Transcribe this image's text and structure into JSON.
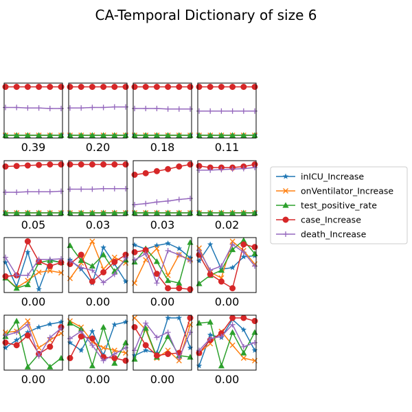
{
  "chart_data": {
    "type": "line",
    "title": "CA-Temporal Dictionary of size 6",
    "x": [
      0,
      1,
      2,
      3,
      4,
      5
    ],
    "legend": {
      "position": "center-right",
      "entries": [
        {
          "name": "inICU_Increase",
          "color": "#1f77b4",
          "marker": "star"
        },
        {
          "name": "onVentilator_Increase",
          "color": "#ff7f0e",
          "marker": "x"
        },
        {
          "name": "test_positive_rate",
          "color": "#2ca02c",
          "marker": "triangle"
        },
        {
          "name": "case_Increase",
          "color": "#d62728",
          "marker": "circle"
        },
        {
          "name": "death_Increase",
          "color": "#9467bd",
          "marker": "plus"
        }
      ]
    },
    "panels": [
      {
        "weight": "0.39",
        "ylim": [
          0,
          1
        ],
        "series": [
          [
            0.02,
            0.02,
            0.02,
            0.02,
            0.02,
            0.02
          ],
          [
            0.02,
            0.02,
            0.02,
            0.02,
            0.02,
            0.02
          ],
          [
            0.02,
            0.02,
            0.02,
            0.02,
            0.02,
            0.02
          ],
          [
            0.96,
            0.96,
            0.96,
            0.96,
            0.96,
            0.96
          ],
          [
            0.56,
            0.56,
            0.55,
            0.55,
            0.54,
            0.54
          ]
        ]
      },
      {
        "weight": "0.20",
        "ylim": [
          0,
          1
        ],
        "series": [
          [
            0.02,
            0.02,
            0.02,
            0.02,
            0.02,
            0.02
          ],
          [
            0.02,
            0.02,
            0.02,
            0.02,
            0.02,
            0.02
          ],
          [
            0.02,
            0.02,
            0.02,
            0.02,
            0.02,
            0.02
          ],
          [
            0.96,
            0.96,
            0.96,
            0.96,
            0.96,
            0.96
          ],
          [
            0.55,
            0.55,
            0.56,
            0.56,
            0.57,
            0.57
          ]
        ]
      },
      {
        "weight": "0.18",
        "ylim": [
          0,
          1
        ],
        "series": [
          [
            0.02,
            0.02,
            0.02,
            0.02,
            0.02,
            0.02
          ],
          [
            0.02,
            0.02,
            0.02,
            0.02,
            0.02,
            0.02
          ],
          [
            0.02,
            0.02,
            0.02,
            0.02,
            0.02,
            0.02
          ],
          [
            0.96,
            0.96,
            0.96,
            0.96,
            0.96,
            0.96
          ],
          [
            0.54,
            0.54,
            0.54,
            0.53,
            0.53,
            0.53
          ]
        ]
      },
      {
        "weight": "0.11",
        "ylim": [
          0,
          1
        ],
        "series": [
          [
            0.02,
            0.02,
            0.02,
            0.02,
            0.02,
            0.02
          ],
          [
            0.02,
            0.02,
            0.02,
            0.02,
            0.02,
            0.02
          ],
          [
            0.02,
            0.02,
            0.02,
            0.02,
            0.02,
            0.02
          ],
          [
            0.96,
            0.96,
            0.96,
            0.96,
            0.96,
            0.96
          ],
          [
            0.49,
            0.49,
            0.49,
            0.49,
            0.49,
            0.49
          ]
        ]
      },
      {
        "weight": "0.05",
        "ylim": [
          0,
          1
        ],
        "series": [
          [
            0.02,
            0.02,
            0.02,
            0.02,
            0.02,
            0.02
          ],
          [
            0.02,
            0.02,
            0.02,
            0.02,
            0.02,
            0.02
          ],
          [
            0.02,
            0.02,
            0.02,
            0.02,
            0.02,
            0.02
          ],
          [
            0.92,
            0.93,
            0.94,
            0.95,
            0.96,
            0.96
          ],
          [
            0.42,
            0.42,
            0.43,
            0.43,
            0.43,
            0.44
          ]
        ]
      },
      {
        "weight": "0.03",
        "ylim": [
          0,
          1
        ],
        "series": [
          [
            0.02,
            0.02,
            0.02,
            0.02,
            0.02,
            0.02
          ],
          [
            0.02,
            0.02,
            0.02,
            0.02,
            0.02,
            0.02
          ],
          [
            0.02,
            0.02,
            0.02,
            0.02,
            0.02,
            0.02
          ],
          [
            0.96,
            0.96,
            0.96,
            0.96,
            0.96,
            0.96
          ],
          [
            0.48,
            0.48,
            0.48,
            0.49,
            0.49,
            0.49
          ]
        ]
      },
      {
        "weight": "0.03",
        "ylim": [
          0,
          1
        ],
        "series": [
          [
            0.02,
            0.02,
            0.02,
            0.02,
            0.02,
            0.02
          ],
          [
            0.02,
            0.02,
            0.02,
            0.02,
            0.02,
            0.02
          ],
          [
            0.02,
            0.02,
            0.02,
            0.02,
            0.02,
            0.02
          ],
          [
            0.76,
            0.79,
            0.83,
            0.87,
            0.92,
            0.96
          ],
          [
            0.18,
            0.2,
            0.23,
            0.25,
            0.28,
            0.3
          ]
        ]
      },
      {
        "weight": "0.02",
        "ylim": [
          0,
          1
        ],
        "series": [
          [
            0.02,
            0.02,
            0.02,
            0.02,
            0.02,
            0.02
          ],
          [
            0.02,
            0.02,
            0.02,
            0.02,
            0.02,
            0.02
          ],
          [
            0.02,
            0.02,
            0.02,
            0.02,
            0.02,
            0.02
          ],
          [
            0.93,
            0.9,
            0.9,
            0.9,
            0.92,
            0.96
          ],
          [
            0.85,
            0.85,
            0.86,
            0.87,
            0.88,
            0.9
          ]
        ]
      },
      {
        "weight": "0.00",
        "ylim": [
          0,
          1
        ],
        "series": [
          [
            0.55,
            0.08,
            0.75,
            0.03,
            0.6,
            0.55
          ],
          [
            0.26,
            0.06,
            0.2,
            0.36,
            0.39,
            0.35
          ],
          [
            0.25,
            0.05,
            0.12,
            0.55,
            0.59,
            0.55
          ],
          [
            0.28,
            0.3,
            0.96,
            0.57,
            0.48,
            0.55
          ],
          [
            0.65,
            0.3,
            0.3,
            0.61,
            0.61,
            0.62
          ]
        ]
      },
      {
        "weight": "0.00",
        "ylim": [
          0,
          1
        ],
        "series": [
          [
            0.6,
            0.42,
            0.15,
            0.84,
            0.52,
            0.18
          ],
          [
            0.24,
            0.54,
            0.96,
            0.42,
            0.65,
            0.54
          ],
          [
            0.88,
            0.59,
            0.48,
            0.7,
            0.38,
            0.6
          ],
          [
            0.52,
            0.7,
            0.18,
            0.36,
            0.56,
            0.7
          ],
          [
            0.58,
            0.45,
            0.4,
            0.16,
            0.32,
            0.64
          ]
        ]
      },
      {
        "weight": "0.00",
        "ylim": [
          0,
          1
        ],
        "series": [
          [
            0.89,
            0.81,
            0.88,
            0.92,
            0.82,
            0.64
          ],
          [
            0.15,
            0.6,
            0.82,
            0.3,
            0.7,
            0.6
          ],
          [
            0.56,
            0.82,
            0.57,
            0.2,
            0.15,
            0.94
          ],
          [
            0.75,
            0.79,
            0.33,
            0.05,
            0.05,
            0.03
          ],
          [
            0.6,
            0.72,
            0.15,
            0.78,
            0.7,
            0.58
          ]
        ]
      },
      {
        "weight": "0.00",
        "ylim": [
          0,
          1
        ],
        "series": [
          [
            0.58,
            0.9,
            0.42,
            0.45,
            0.66,
            0.68
          ],
          [
            0.83,
            0.36,
            0.25,
            0.96,
            0.78,
            0.52
          ],
          [
            0.14,
            0.3,
            0.4,
            0.8,
            0.98,
            0.72
          ],
          [
            0.7,
            0.32,
            0.18,
            0.05,
            0.9,
            0.85
          ],
          [
            0.78,
            0.4,
            0.48,
            0.9,
            0.75,
            0.48
          ]
        ]
      },
      {
        "weight": "0.00",
        "ylim": [
          0,
          1
        ],
        "series": [
          [
            0.4,
            0.55,
            0.7,
            0.8,
            0.86,
            0.9
          ],
          [
            0.7,
            0.72,
            0.92,
            0.4,
            0.55,
            0.68
          ],
          [
            0.62,
            0.92,
            0.03,
            0.28,
            0.03,
            0.2
          ],
          [
            0.5,
            0.45,
            0.64,
            0.28,
            0.42,
            0.8
          ],
          [
            0.64,
            0.7,
            0.85,
            0.24,
            0.6,
            0.78
          ]
        ]
      },
      {
        "weight": "0.00",
        "ylim": [
          0,
          1
        ],
        "series": [
          [
            0.5,
            0.35,
            0.72,
            0.25,
            0.85,
            0.9
          ],
          [
            0.92,
            0.8,
            0.52,
            0.4,
            0.35,
            0.3
          ],
          [
            0.88,
            0.76,
            0.05,
            0.8,
            0.1,
            0.5
          ],
          [
            0.2,
            0.62,
            0.58,
            0.22,
            0.2,
            0.15
          ],
          [
            0.58,
            0.72,
            0.45,
            0.15,
            0.28,
            0.4
          ]
        ]
      },
      {
        "weight": "0.00",
        "ylim": [
          0,
          1
        ],
        "series": [
          [
            0.25,
            0.35,
            0.3,
            0.98,
            0.98,
            0.4
          ],
          [
            0.98,
            0.75,
            0.2,
            0.35,
            0.15,
            0.85
          ],
          [
            0.18,
            0.78,
            0.22,
            0.62,
            0.25,
            0.22
          ],
          [
            0.8,
            0.45,
            0.25,
            0.28,
            0.3,
            0.98
          ],
          [
            0.35,
            0.88,
            0.6,
            0.7,
            0.2,
            0.7
          ]
        ]
      },
      {
        "weight": "0.00",
        "ylim": [
          0,
          1
        ],
        "series": [
          [
            0.05,
            0.65,
            0.6,
            0.95,
            0.75,
            0.35
          ],
          [
            0.3,
            0.48,
            0.72,
            0.45,
            0.2,
            0.15
          ],
          [
            0.88,
            0.9,
            0.05,
            0.7,
            0.3,
            0.7
          ],
          [
            0.3,
            0.55,
            0.68,
            0.98,
            0.98,
            0.92
          ],
          [
            0.35,
            0.58,
            0.62,
            0.85,
            0.42,
            0.5
          ]
        ]
      }
    ]
  }
}
